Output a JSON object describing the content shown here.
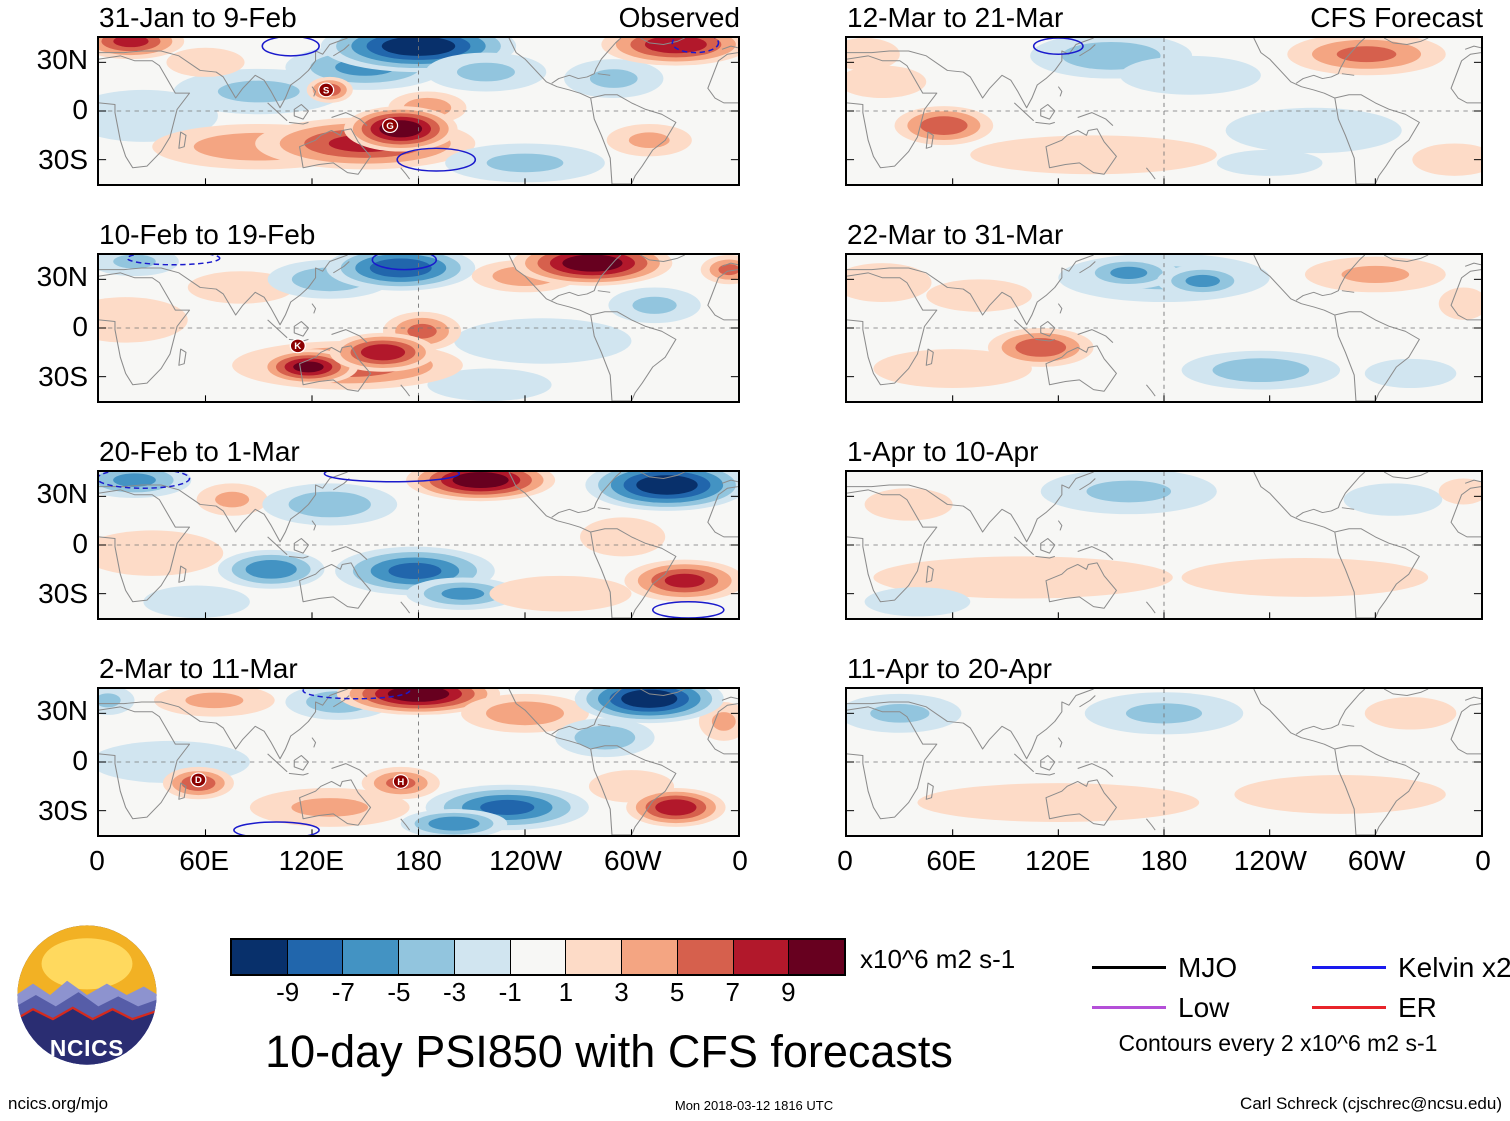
{
  "meta": {
    "site": "ncics.org/mjo",
    "timestamp": "Mon 2018-03-12 1816 UTC",
    "credit": "Carl Schreck (cjschrec@ncsu.edu)",
    "logo_text": "NCICS"
  },
  "chart_data": {
    "type": "heatmap",
    "title": "10-day PSI850 with CFS forecasts",
    "column_headers": [
      "Observed",
      "CFS Forecast"
    ],
    "x_ticks": [
      "0",
      "60E",
      "120E",
      "180",
      "120W",
      "60W",
      "0"
    ],
    "y_ticks": [
      "30N",
      "0",
      "30S"
    ],
    "lon_range": [
      0,
      360
    ],
    "lat_range": [
      -45,
      45
    ],
    "colorbar": {
      "unit": "x10^6 m2 s-1",
      "ticks": [
        "-9",
        "-7",
        "-5",
        "-3",
        "-1",
        "1",
        "3",
        "5",
        "7",
        "9"
      ],
      "colors": [
        "#08306b",
        "#2166ac",
        "#4393c3",
        "#92c5de",
        "#d1e5f0",
        "#f7f7f5",
        "#fddbc7",
        "#f4a582",
        "#d6604d",
        "#b2182b",
        "#67001f"
      ]
    },
    "legend": {
      "entries": [
        {
          "label": "MJO",
          "color": "#000000"
        },
        {
          "label": "Kelvin x2",
          "color": "#1a1aee"
        },
        {
          "label": "Low",
          "color": "#b44fd8"
        },
        {
          "label": "ER",
          "color": "#e8242a"
        }
      ],
      "note": "Contours every 2 x10^6 m2 s-1"
    },
    "panels": [
      {
        "title": "31-Jan to 9-Feb",
        "col": 0,
        "row": 0,
        "blobs": [
          [
            25,
            -3,
            42,
            16,
            -2
          ],
          [
            90,
            12,
            48,
            14,
            -3
          ],
          [
            18,
            43,
            30,
            11,
            7
          ],
          [
            60,
            30,
            22,
            9,
            2
          ],
          [
            150,
            27,
            45,
            14,
            -5
          ],
          [
            180,
            40,
            55,
            16,
            -10
          ],
          [
            218,
            24,
            34,
            12,
            -3
          ],
          [
            290,
            20,
            28,
            12,
            -3
          ],
          [
            325,
            41,
            42,
            13,
            8
          ],
          [
            90,
            -22,
            60,
            14,
            4
          ],
          [
            150,
            -20,
            62,
            16,
            7
          ],
          [
            185,
            2,
            22,
            10,
            4
          ],
          [
            170,
            -11,
            32,
            14,
            10
          ],
          [
            240,
            -32,
            45,
            12,
            -3
          ],
          [
            310,
            -18,
            24,
            10,
            3
          ],
          [
            130,
            13,
            13,
            8,
            6
          ]
        ],
        "contours": [
          [
            108,
            40,
            16,
            6,
            0
          ],
          [
            190,
            -30,
            22,
            7,
            0
          ],
          [
            336,
            42,
            13,
            6,
            1
          ]
        ],
        "markers": [
          {
            "label": "S",
            "lon": 128,
            "lat": 13
          },
          {
            "label": "G",
            "lon": 164,
            "lat": -9
          }
        ]
      },
      {
        "title": "10-Feb to 19-Feb",
        "col": 0,
        "row": 1,
        "blobs": [
          [
            15,
            5,
            35,
            14,
            2
          ],
          [
            80,
            25,
            30,
            10,
            2
          ],
          [
            20,
            41,
            25,
            9,
            -3
          ],
          [
            130,
            30,
            35,
            12,
            -4
          ],
          [
            170,
            37,
            42,
            14,
            -8
          ],
          [
            240,
            32,
            30,
            10,
            4
          ],
          [
            278,
            40,
            45,
            14,
            10
          ],
          [
            355,
            36,
            16,
            9,
            5
          ],
          [
            313,
            14,
            26,
            11,
            -3
          ],
          [
            250,
            -8,
            50,
            14,
            -2
          ],
          [
            220,
            -35,
            35,
            10,
            -2
          ],
          [
            140,
            -23,
            65,
            15,
            6
          ],
          [
            182,
            -2,
            22,
            12,
            5
          ],
          [
            118,
            -24,
            28,
            11,
            9
          ],
          [
            160,
            -15,
            30,
            12,
            8
          ]
        ],
        "contours": [
          [
            172,
            42,
            18,
            6,
            0
          ],
          [
            42,
            43,
            26,
            4,
            1
          ]
        ],
        "markers": [
          {
            "label": "K",
            "lon": 112,
            "lat": -11
          }
        ]
      },
      {
        "title": "20-Feb to 1-Mar",
        "col": 0,
        "row": 2,
        "blobs": [
          [
            30,
            -5,
            40,
            14,
            2
          ],
          [
            55,
            -35,
            30,
            10,
            -2
          ],
          [
            20,
            40,
            32,
            11,
            -5
          ],
          [
            75,
            28,
            20,
            10,
            3
          ],
          [
            130,
            25,
            38,
            13,
            -4
          ],
          [
            215,
            40,
            42,
            13,
            10
          ],
          [
            320,
            37,
            46,
            16,
            -10
          ],
          [
            97,
            -15,
            30,
            12,
            -6
          ],
          [
            178,
            -16,
            45,
            15,
            -7
          ],
          [
            205,
            -30,
            32,
            10,
            -5
          ],
          [
            260,
            -30,
            40,
            11,
            2
          ],
          [
            295,
            5,
            24,
            12,
            2
          ],
          [
            330,
            -22,
            34,
            13,
            7
          ]
        ],
        "contours": [
          [
            25,
            41,
            26,
            6,
            1
          ],
          [
            165,
            44,
            38,
            5,
            0
          ],
          [
            332,
            -40,
            20,
            5,
            0
          ]
        ],
        "markers": []
      },
      {
        "title": "2-Mar to 11-Mar",
        "col": 0,
        "row": 3,
        "blobs": [
          [
            40,
            0,
            45,
            13,
            -2
          ],
          [
            65,
            38,
            34,
            10,
            3
          ],
          [
            5,
            38,
            15,
            9,
            -3
          ],
          [
            135,
            37,
            30,
            11,
            -4
          ],
          [
            180,
            42,
            46,
            13,
            10
          ],
          [
            240,
            30,
            36,
            12,
            4
          ],
          [
            352,
            25,
            14,
            12,
            3
          ],
          [
            310,
            39,
            42,
            15,
            -10
          ],
          [
            285,
            15,
            28,
            12,
            -4
          ],
          [
            130,
            -28,
            45,
            12,
            3
          ],
          [
            56,
            -13,
            20,
            10,
            6
          ],
          [
            170,
            -13,
            22,
            10,
            5
          ],
          [
            230,
            -28,
            46,
            14,
            -7
          ],
          [
            200,
            -38,
            30,
            9,
            -6
          ],
          [
            300,
            -15,
            24,
            10,
            2
          ],
          [
            325,
            -28,
            28,
            12,
            8
          ]
        ],
        "contours": [
          [
            145,
            44,
            30,
            5,
            1
          ],
          [
            100,
            -42,
            24,
            5,
            0
          ]
        ],
        "markers": [
          {
            "label": "D",
            "lon": 56,
            "lat": -11
          },
          {
            "label": "H",
            "lon": 170,
            "lat": -12
          }
        ]
      },
      {
        "title": "12-Mar to 21-Mar",
        "col": 1,
        "row": 0,
        "blobs": [
          [
            10,
            35,
            20,
            10,
            2
          ],
          [
            20,
            18,
            25,
            10,
            2
          ],
          [
            150,
            34,
            46,
            14,
            -4
          ],
          [
            195,
            22,
            40,
            12,
            -2
          ],
          [
            295,
            35,
            45,
            13,
            5
          ],
          [
            140,
            -27,
            70,
            12,
            2
          ],
          [
            265,
            -12,
            50,
            14,
            -2
          ],
          [
            240,
            -32,
            30,
            8,
            -2
          ],
          [
            345,
            -30,
            24,
            10,
            2
          ],
          [
            55,
            -9,
            28,
            12,
            6
          ]
        ],
        "contours": [
          [
            120,
            40,
            14,
            5,
            0
          ]
        ],
        "markers": []
      },
      {
        "title": "22-Mar to 31-Mar",
        "col": 1,
        "row": 1,
        "blobs": [
          [
            20,
            28,
            28,
            12,
            2
          ],
          [
            75,
            20,
            30,
            10,
            2
          ],
          [
            180,
            31,
            60,
            15,
            -3
          ],
          [
            160,
            34,
            28,
            10,
            -5
          ],
          [
            202,
            29,
            26,
            10,
            -5
          ],
          [
            60,
            -25,
            45,
            12,
            2
          ],
          [
            300,
            33,
            40,
            11,
            3
          ],
          [
            350,
            15,
            14,
            10,
            2
          ],
          [
            235,
            -26,
            45,
            12,
            -4
          ],
          [
            320,
            -28,
            26,
            9,
            -2
          ],
          [
            110,
            -12,
            30,
            12,
            6
          ]
        ],
        "contours": [],
        "markers": []
      },
      {
        "title": "1-Apr to 10-Apr",
        "col": 1,
        "row": 2,
        "blobs": [
          [
            35,
            25,
            25,
            10,
            2
          ],
          [
            160,
            33,
            50,
            14,
            -3
          ],
          [
            310,
            28,
            28,
            10,
            -2
          ],
          [
            100,
            -20,
            85,
            13,
            2
          ],
          [
            260,
            -20,
            70,
            12,
            2
          ],
          [
            40,
            -35,
            30,
            9,
            -2
          ],
          [
            350,
            33,
            14,
            8,
            2
          ]
        ],
        "contours": [],
        "markers": []
      },
      {
        "title": "11-Apr to 20-Apr",
        "col": 1,
        "row": 3,
        "blobs": [
          [
            30,
            30,
            35,
            12,
            -3
          ],
          [
            180,
            30,
            45,
            13,
            -3
          ],
          [
            120,
            -25,
            80,
            12,
            2
          ],
          [
            280,
            -20,
            60,
            12,
            2
          ],
          [
            320,
            30,
            26,
            10,
            2
          ]
        ],
        "contours": [],
        "markers": []
      }
    ]
  }
}
